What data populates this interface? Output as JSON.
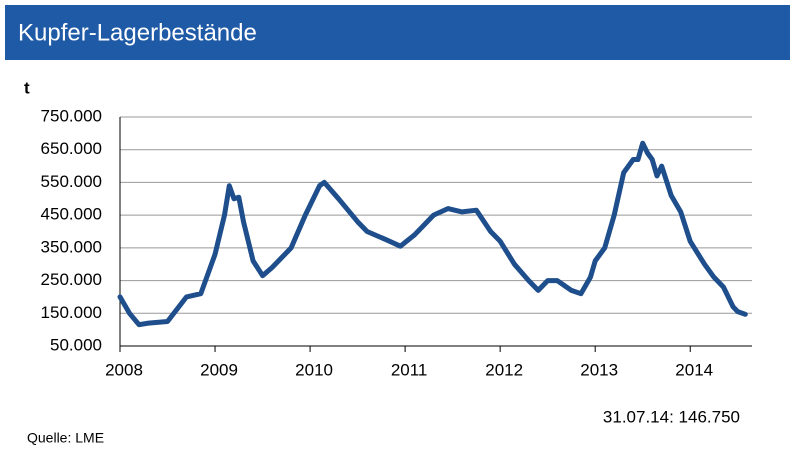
{
  "chart_data": {
    "type": "line",
    "title": "Kupfer-Lagerbestände",
    "y_label": "t",
    "x": [
      2008.0,
      2008.1,
      2008.2,
      2008.3,
      2008.5,
      2008.7,
      2008.85,
      2009.0,
      2009.1,
      2009.15,
      2009.2,
      2009.25,
      2009.3,
      2009.4,
      2009.5,
      2009.6,
      2009.8,
      2009.95,
      2010.1,
      2010.15,
      2010.3,
      2010.5,
      2010.6,
      2010.8,
      2010.95,
      2011.1,
      2011.3,
      2011.45,
      2011.6,
      2011.75,
      2011.9,
      2012.0,
      2012.15,
      2012.3,
      2012.4,
      2012.5,
      2012.6,
      2012.75,
      2012.85,
      2012.95,
      2013.0,
      2013.1,
      2013.2,
      2013.3,
      2013.4,
      2013.45,
      2013.5,
      2013.55,
      2013.6,
      2013.65,
      2013.7,
      2013.8,
      2013.9,
      2014.0,
      2014.15,
      2014.25,
      2014.35,
      2014.45,
      2014.5,
      2014.58
    ],
    "series": [
      {
        "name": "Kupfer-Lagerbestände",
        "color": "#1f4e8c",
        "values": [
          200000,
          150000,
          115000,
          120000,
          125000,
          200000,
          210000,
          330000,
          450000,
          540000,
          500000,
          505000,
          430000,
          310000,
          265000,
          290000,
          350000,
          450000,
          540000,
          550000,
          500000,
          430000,
          400000,
          375000,
          355000,
          390000,
          450000,
          470000,
          460000,
          465000,
          400000,
          370000,
          300000,
          250000,
          220000,
          250000,
          250000,
          220000,
          210000,
          260000,
          310000,
          350000,
          450000,
          580000,
          620000,
          620000,
          670000,
          640000,
          620000,
          570000,
          600000,
          510000,
          460000,
          370000,
          300000,
          260000,
          230000,
          170000,
          155000,
          146750
        ]
      }
    ],
    "xlim": [
      2008,
      2014.65
    ],
    "xticks": [
      2008,
      2009,
      2010,
      2011,
      2012,
      2013,
      2014
    ],
    "ylim": [
      50000,
      750000
    ],
    "yticks": [
      {
        "value": 50000,
        "label": "50.000"
      },
      {
        "value": 150000,
        "label": "150.000"
      },
      {
        "value": 250000,
        "label": "250.000"
      },
      {
        "value": 350000,
        "label": "350.000"
      },
      {
        "value": 450000,
        "label": "450.000"
      },
      {
        "value": 550000,
        "label": "550.000"
      },
      {
        "value": 650000,
        "label": "650.000"
      },
      {
        "value": 750000,
        "label": "750.000"
      }
    ],
    "grid": true,
    "annotation": "31.07.14:  146.750",
    "source": "Quelle:  LME"
  }
}
